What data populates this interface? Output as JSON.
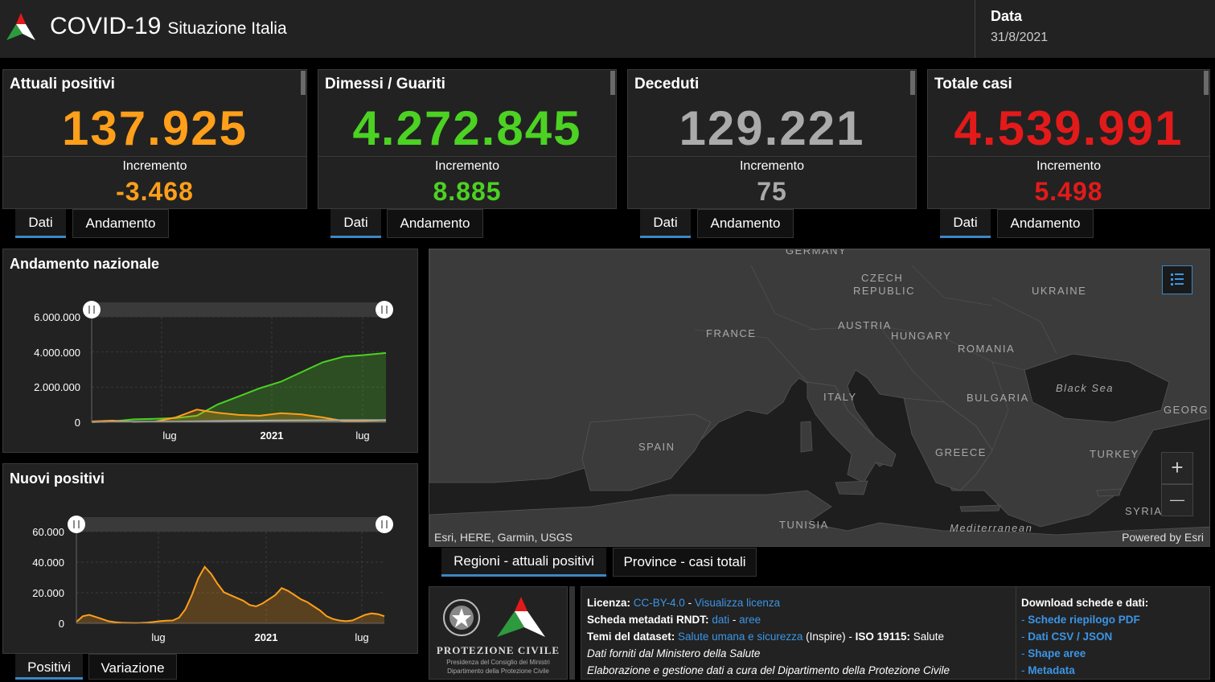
{
  "header": {
    "title": "COVID-19",
    "subtitle": "Situazione Italia",
    "date_label": "Data",
    "date_value": "31/8/2021"
  },
  "cards": [
    {
      "title": "Attuali positivi",
      "value": "137.925",
      "inc_label": "Incremento",
      "inc_value": "-3.468",
      "color": "#ff9f1a"
    },
    {
      "title": "Dimessi / Guariti",
      "value": "4.272.845",
      "inc_label": "Incremento",
      "inc_value": "8.885",
      "color": "#4cd223"
    },
    {
      "title": "Deceduti",
      "value": "129.221",
      "inc_label": "Incremento",
      "inc_value": "75",
      "color": "#aaaaaa"
    },
    {
      "title": "Totale casi",
      "value": "4.539.991",
      "inc_label": "Incremento",
      "inc_value": "5.498",
      "color": "#e31a1a"
    }
  ],
  "card_tabs": {
    "dati": "Dati",
    "andamento": "Andamento"
  },
  "national_chart": {
    "title": "Andamento nazionale",
    "y_ticks": [
      "6.000.000",
      "4.000.000",
      "2.000.000",
      "0"
    ],
    "x_ticks": [
      "lug",
      "2021",
      "lug"
    ]
  },
  "new_positive_chart": {
    "title": "Nuovi positivi",
    "y_ticks": [
      "60.000",
      "40.000",
      "20.000",
      "0"
    ],
    "x_ticks": [
      "lug",
      "2021",
      "lug"
    ]
  },
  "chart_tabs": {
    "positivi": "Positivi",
    "variazione": "Variazione"
  },
  "map": {
    "labels": {
      "germany": "GERMANY",
      "czech1": "CZECH",
      "czech2": "REPUBLIC",
      "ukraine": "UKRAINE",
      "france": "FRANCE",
      "austria": "AUSTRIA",
      "hungary": "HUNGARY",
      "romania": "ROMANIA",
      "italy": "ITALY",
      "bulgaria": "BULGARIA",
      "black_sea": "Black Sea",
      "georgia": "GEORGI",
      "spain": "SPAIN",
      "greece": "GREECE",
      "turkey": "TURKEY",
      "tunisia": "TUNISIA",
      "syria": "SYRIA",
      "mediterranean": "Mediterranean"
    },
    "attribution": "Esri, HERE, Garmin, USGS",
    "powered": "Powered by Esri",
    "zoom_in": "+",
    "zoom_out": "—"
  },
  "map_tabs": {
    "regioni": "Regioni - attuali positivi",
    "province": "Province - casi totali"
  },
  "logo": {
    "line1": "PROTEZIONE CIVILE",
    "line2": "Presidenza del Consiglio dei Ministri",
    "line3": "Dipartimento della Protezione Civile"
  },
  "info": {
    "licenza_label": "Licenza:",
    "licenza_link": "CC-BY-4.0",
    "dash": " - ",
    "licenza_view": "Visualizza licenza",
    "scheda_label": "Scheda metadati RNDT:",
    "scheda_dati": "dati",
    "scheda_aree": "aree",
    "temi_label": "Temi del dataset:",
    "temi_link": "Salute umana e sicurezza",
    "temi_inspire": "(Inspire) - ",
    "iso_label": "ISO 19115:",
    "iso_value": "Salute",
    "line4": "Dati forniti dal Ministero della Salute",
    "line5": "Elaborazione e gestione dati a cura del Dipartimento della Protezione Civile"
  },
  "downloads": {
    "title": "Download schede e dati:",
    "items": [
      "Schede riepilogo PDF",
      "Dati CSV / JSON",
      "Shape aree",
      "Metadata"
    ],
    "bullet": "- "
  },
  "chart_data": [
    {
      "type": "area",
      "title": "Andamento nazionale",
      "x_ticks": [
        "lug",
        "2021",
        "lug"
      ],
      "y_ticks": [
        "6.000.000",
        "4.000.000",
        "2.000.000",
        "0"
      ],
      "ylim": [
        0,
        6500000
      ],
      "x": [
        "2020-03",
        "2020-05",
        "2020-07",
        "2020-09",
        "2020-10",
        "2020-11",
        "2020-12",
        "2021-01",
        "2021-02",
        "2021-03",
        "2021-04",
        "2021-05",
        "2021-06",
        "2021-07",
        "2021-08-31"
      ],
      "series": [
        {
          "values": [
            5000,
            50000,
            180000,
            210000,
            260000,
            400000,
            1100000,
            1600000,
            2100000,
            2500000,
            3100000,
            3700000,
            4050000,
            4150000,
            4272845
          ],
          "color": "#4cd223"
        },
        {
          "values": [
            50000,
            100000,
            15000,
            30000,
            300000,
            780000,
            580000,
            450000,
            400000,
            560000,
            480000,
            300000,
            70000,
            80000,
            137925
          ],
          "color": "#ff9f1a"
        },
        {
          "values": [
            2000,
            30000,
            35000,
            36000,
            38000,
            55000,
            74000,
            88000,
            97000,
            110000,
            120000,
            126000,
            127500,
            128000,
            129221
          ],
          "color": "#aaaaaa"
        }
      ]
    },
    {
      "type": "area",
      "title": "Nuovi positivi",
      "x_ticks": [
        "lug",
        "2021",
        "lug"
      ],
      "y_ticks": [
        "60.000",
        "40.000",
        "20.000",
        "0"
      ],
      "ylim": [
        0,
        65000
      ],
      "series": [
        {
          "color": "#ff9f1a",
          "values": [
            1000,
            5000,
            6000,
            4500,
            3000,
            1500,
            800,
            400,
            300,
            250,
            300,
            500,
            900,
            1500,
            1800,
            2000,
            4000,
            10000,
            20000,
            32000,
            40000,
            35000,
            28000,
            22000,
            20000,
            18000,
            16000,
            13000,
            12000,
            14000,
            17000,
            20000,
            25000,
            23000,
            20000,
            17000,
            15000,
            12000,
            9000,
            5000,
            3000,
            2000,
            1500,
            2000,
            4000,
            6000,
            7000,
            6500,
            5000
          ]
        }
      ]
    }
  ]
}
